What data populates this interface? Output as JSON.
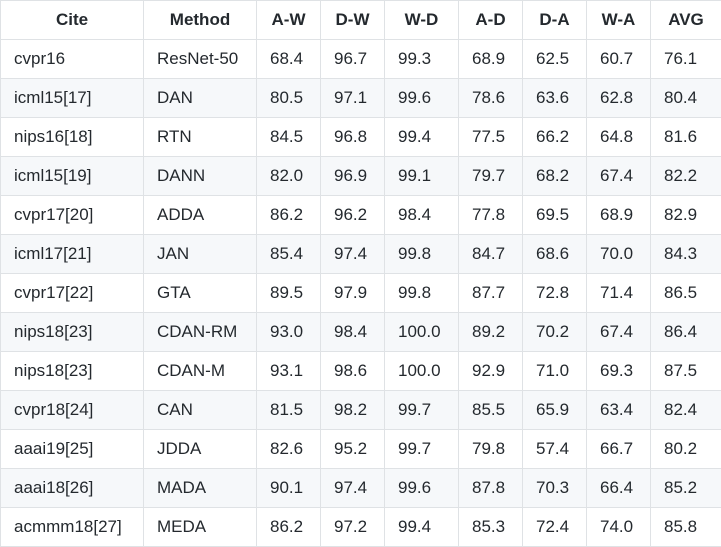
{
  "table": {
    "headers": [
      "Cite",
      "Method",
      "A-W",
      "D-W",
      "W-D",
      "A-D",
      "D-A",
      "W-A",
      "AVG"
    ],
    "rows": [
      [
        "cvpr16",
        "ResNet-50",
        "68.4",
        "96.7",
        "99.3",
        "68.9",
        "62.5",
        "60.7",
        "76.1"
      ],
      [
        "icml15[17]",
        "DAN",
        "80.5",
        "97.1",
        "99.6",
        "78.6",
        "63.6",
        "62.8",
        "80.4"
      ],
      [
        "nips16[18]",
        "RTN",
        "84.5",
        "96.8",
        "99.4",
        "77.5",
        "66.2",
        "64.8",
        "81.6"
      ],
      [
        "icml15[19]",
        "DANN",
        "82.0",
        "96.9",
        "99.1",
        "79.7",
        "68.2",
        "67.4",
        "82.2"
      ],
      [
        "cvpr17[20]",
        "ADDA",
        "86.2",
        "96.2",
        "98.4",
        "77.8",
        "69.5",
        "68.9",
        "82.9"
      ],
      [
        "icml17[21]",
        "JAN",
        "85.4",
        "97.4",
        "99.8",
        "84.7",
        "68.6",
        "70.0",
        "84.3"
      ],
      [
        "cvpr17[22]",
        "GTA",
        "89.5",
        "97.9",
        "99.8",
        "87.7",
        "72.8",
        "71.4",
        "86.5"
      ],
      [
        "nips18[23]",
        "CDAN-RM",
        "93.0",
        "98.4",
        "100.0",
        "89.2",
        "70.2",
        "67.4",
        "86.4"
      ],
      [
        "nips18[23]",
        "CDAN-M",
        "93.1",
        "98.6",
        "100.0",
        "92.9",
        "71.0",
        "69.3",
        "87.5"
      ],
      [
        "cvpr18[24]",
        "CAN",
        "81.5",
        "98.2",
        "99.7",
        "85.5",
        "65.9",
        "63.4",
        "82.4"
      ],
      [
        "aaai19[25]",
        "JDDA",
        "82.6",
        "95.2",
        "99.7",
        "79.8",
        "57.4",
        "66.7",
        "80.2"
      ],
      [
        "aaai18[26]",
        "MADA",
        "90.1",
        "97.4",
        "99.6",
        "87.8",
        "70.3",
        "66.4",
        "85.2"
      ],
      [
        "acmmm18[27]",
        "MEDA",
        "86.2",
        "97.2",
        "99.4",
        "85.3",
        "72.4",
        "74.0",
        "85.8"
      ]
    ]
  }
}
